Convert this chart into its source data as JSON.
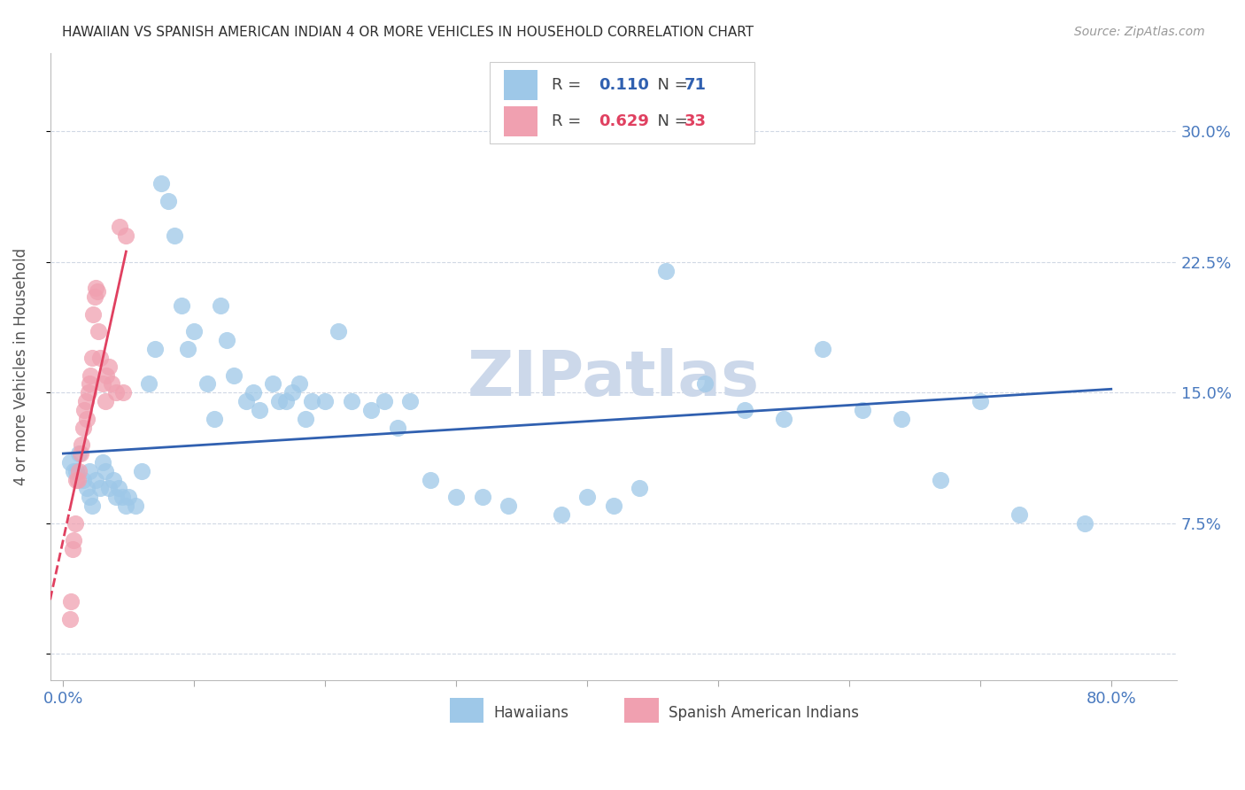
{
  "title": "HAWAIIAN VS SPANISH AMERICAN INDIAN 4 OR MORE VEHICLES IN HOUSEHOLD CORRELATION CHART",
  "source": "Source: ZipAtlas.com",
  "ylabel": "4 or more Vehicles in Household",
  "xlim": [
    -0.01,
    0.85
  ],
  "ylim": [
    -0.015,
    0.345
  ],
  "y_ticks": [
    0.0,
    0.075,
    0.15,
    0.225,
    0.3
  ],
  "y_tick_labels_right": [
    "",
    "7.5%",
    "15.0%",
    "22.5%",
    "30.0%"
  ],
  "x_ticks": [
    0.0,
    0.1,
    0.2,
    0.3,
    0.4,
    0.5,
    0.6,
    0.7,
    0.8
  ],
  "hawaiians_color": "#9ec8e8",
  "spanish_color": "#f0a0b0",
  "blue_line_color": "#3060b0",
  "pink_line_color": "#e04060",
  "grid_color": "#d0d8e4",
  "background_color": "#ffffff",
  "title_color": "#303030",
  "axis_label_color": "#555555",
  "tick_color_right": "#4a7abf",
  "watermark": "ZIPatlas",
  "watermark_color": "#ccd8ea",
  "legend_r1": "0.110",
  "legend_n1": "71",
  "legend_r2": "0.629",
  "legend_n2": "33",
  "legend_num_color_blue": "#3060b0",
  "legend_num_color_pink": "#e04060",
  "hawaiians_x": [
    0.005,
    0.008,
    0.01,
    0.012,
    0.015,
    0.018,
    0.02,
    0.02,
    0.022,
    0.025,
    0.028,
    0.03,
    0.032,
    0.035,
    0.038,
    0.04,
    0.042,
    0.045,
    0.048,
    0.05,
    0.055,
    0.06,
    0.065,
    0.07,
    0.075,
    0.08,
    0.085,
    0.09,
    0.095,
    0.1,
    0.11,
    0.115,
    0.12,
    0.125,
    0.13,
    0.14,
    0.145,
    0.15,
    0.16,
    0.165,
    0.17,
    0.175,
    0.18,
    0.185,
    0.19,
    0.2,
    0.21,
    0.22,
    0.235,
    0.245,
    0.255,
    0.265,
    0.28,
    0.3,
    0.32,
    0.34,
    0.38,
    0.4,
    0.42,
    0.44,
    0.46,
    0.49,
    0.52,
    0.55,
    0.58,
    0.61,
    0.64,
    0.67,
    0.7,
    0.73,
    0.78
  ],
  "hawaiians_y": [
    0.11,
    0.105,
    0.105,
    0.115,
    0.1,
    0.095,
    0.105,
    0.09,
    0.085,
    0.1,
    0.095,
    0.11,
    0.105,
    0.095,
    0.1,
    0.09,
    0.095,
    0.09,
    0.085,
    0.09,
    0.085,
    0.105,
    0.155,
    0.175,
    0.27,
    0.26,
    0.24,
    0.2,
    0.175,
    0.185,
    0.155,
    0.135,
    0.2,
    0.18,
    0.16,
    0.145,
    0.15,
    0.14,
    0.155,
    0.145,
    0.145,
    0.15,
    0.155,
    0.135,
    0.145,
    0.145,
    0.185,
    0.145,
    0.14,
    0.145,
    0.13,
    0.145,
    0.1,
    0.09,
    0.09,
    0.085,
    0.08,
    0.09,
    0.085,
    0.095,
    0.22,
    0.155,
    0.14,
    0.135,
    0.175,
    0.14,
    0.135,
    0.1,
    0.145,
    0.08,
    0.075
  ],
  "spanish_x": [
    0.005,
    0.006,
    0.007,
    0.008,
    0.009,
    0.01,
    0.011,
    0.012,
    0.013,
    0.014,
    0.015,
    0.016,
    0.017,
    0.018,
    0.019,
    0.02,
    0.021,
    0.022,
    0.023,
    0.024,
    0.025,
    0.026,
    0.027,
    0.028,
    0.03,
    0.032,
    0.033,
    0.035,
    0.037,
    0.04,
    0.043,
    0.046,
    0.048
  ],
  "spanish_y": [
    0.02,
    0.03,
    0.06,
    0.065,
    0.075,
    0.1,
    0.1,
    0.105,
    0.115,
    0.12,
    0.13,
    0.14,
    0.145,
    0.135,
    0.15,
    0.155,
    0.16,
    0.17,
    0.195,
    0.205,
    0.21,
    0.208,
    0.185,
    0.17,
    0.155,
    0.145,
    0.16,
    0.165,
    0.155,
    0.15,
    0.245,
    0.15,
    0.24
  ],
  "blue_line_x0": 0.0,
  "blue_line_x1": 0.8,
  "blue_line_y0": 0.115,
  "blue_line_y1": 0.152
}
